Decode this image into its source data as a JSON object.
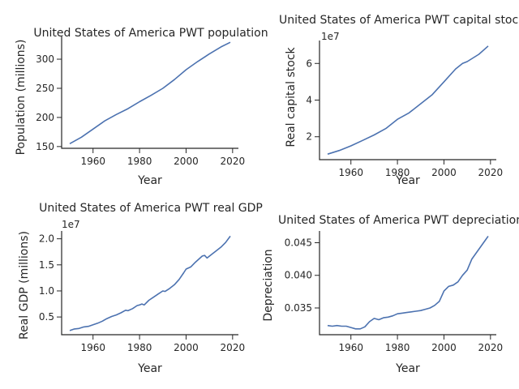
{
  "colors": {
    "line": "#4c72b0",
    "axis": "#262626",
    "background": "#ffffff"
  },
  "chart_data": [
    {
      "id": "population",
      "type": "line",
      "title": "United States of America PWT population",
      "xlabel": "Year",
      "ylabel": "Population (millions)",
      "offset_text": "",
      "xlim": [
        1946.5,
        2022.5
      ],
      "ylim": [
        147,
        339
      ],
      "xticks": [
        1960,
        1980,
        2000,
        2020
      ],
      "xtick_labels": [
        "1960",
        "1980",
        "2000",
        "2020"
      ],
      "yticks": [
        150,
        200,
        250,
        300
      ],
      "ytick_labels": [
        "150",
        "200",
        "250",
        "300"
      ],
      "series": [
        {
          "x": [
            1950,
            1955,
            1960,
            1965,
            1970,
            1975,
            1980,
            1985,
            1990,
            1995,
            2000,
            2005,
            2010,
            2015,
            2019
          ],
          "y": [
            155,
            166,
            180,
            194,
            205,
            215,
            227,
            238,
            250,
            265,
            282,
            296,
            309,
            321,
            329
          ]
        }
      ]
    },
    {
      "id": "capital",
      "type": "line",
      "title": "United States of America PWT capital stock",
      "xlabel": "Year",
      "ylabel": "Real capital stock",
      "offset_text": "1e7",
      "xlim": [
        1946.5,
        2022.5
      ],
      "ylim": [
        0.75,
        7.25
      ],
      "xticks": [
        1960,
        1980,
        2000,
        2020
      ],
      "xtick_labels": [
        "1960",
        "1980",
        "2000",
        "2020"
      ],
      "yticks": [
        2,
        4,
        6
      ],
      "ytick_labels": [
        "2",
        "4",
        "6"
      ],
      "series": [
        {
          "x": [
            1950,
            1955,
            1960,
            1965,
            1970,
            1975,
            1980,
            1985,
            1990,
            1995,
            2000,
            2005,
            2008,
            2010,
            2015,
            2019
          ],
          "y": [
            1.05,
            1.25,
            1.5,
            1.8,
            2.1,
            2.45,
            2.95,
            3.3,
            3.8,
            4.3,
            5.0,
            5.7,
            6.0,
            6.1,
            6.5,
            6.95
          ]
        }
      ]
    },
    {
      "id": "gdp",
      "type": "line",
      "title": "United States of America PWT real GDP",
      "xlabel": "Year",
      "ylabel": "Real GDP (millions)",
      "offset_text": "1e7",
      "xlim": [
        1946.5,
        2022.5
      ],
      "ylim": [
        0.16,
        2.15
      ],
      "xticks": [
        1960,
        1980,
        2000,
        2020
      ],
      "xtick_labels": [
        "1960",
        "1980",
        "2000",
        "2020"
      ],
      "yticks": [
        0.5,
        1.0,
        1.5,
        2.0
      ],
      "ytick_labels": [
        "0.5",
        "1.0",
        "1.5",
        "2.0"
      ],
      "series": [
        {
          "x": [
            1950,
            1952,
            1954,
            1956,
            1958,
            1960,
            1962,
            1964,
            1966,
            1968,
            1970,
            1972,
            1974,
            1975,
            1977,
            1979,
            1980,
            1981,
            1982,
            1984,
            1986,
            1988,
            1990,
            1991,
            1993,
            1995,
            1997,
            1999,
            2000,
            2002,
            2004,
            2006,
            2007,
            2008,
            2009,
            2011,
            2013,
            2015,
            2017,
            2019
          ],
          "y": [
            0.24,
            0.27,
            0.28,
            0.31,
            0.32,
            0.35,
            0.38,
            0.42,
            0.47,
            0.51,
            0.54,
            0.58,
            0.63,
            0.62,
            0.66,
            0.72,
            0.73,
            0.75,
            0.73,
            0.82,
            0.88,
            0.94,
            1.0,
            0.99,
            1.05,
            1.12,
            1.22,
            1.35,
            1.42,
            1.46,
            1.55,
            1.63,
            1.67,
            1.68,
            1.63,
            1.7,
            1.77,
            1.84,
            1.93,
            2.05
          ]
        }
      ]
    },
    {
      "id": "depreciation",
      "type": "line",
      "title": "United States of America PWT depreciation",
      "xlabel": "Year",
      "ylabel": "Depreciation",
      "offset_text": "",
      "xlim": [
        1946.5,
        2022.5
      ],
      "ylim": [
        0.0309,
        0.0468
      ],
      "xticks": [
        1960,
        1980,
        2000,
        2020
      ],
      "xtick_labels": [
        "1960",
        "1980",
        "2000",
        "2020"
      ],
      "yticks": [
        0.035,
        0.04,
        0.045
      ],
      "ytick_labels": [
        "0.035",
        "0.040",
        "0.045"
      ],
      "series": [
        {
          "x": [
            1950,
            1952,
            1954,
            1956,
            1958,
            1960,
            1962,
            1964,
            1966,
            1968,
            1970,
            1972,
            1974,
            1976,
            1978,
            1980,
            1982,
            1984,
            1986,
            1988,
            1990,
            1992,
            1994,
            1996,
            1998,
            2000,
            2002,
            2004,
            2006,
            2008,
            2010,
            2012,
            2014,
            2016,
            2018,
            2019
          ],
          "y": [
            0.0323,
            0.0322,
            0.0323,
            0.0322,
            0.0322,
            0.032,
            0.0318,
            0.0318,
            0.0321,
            0.0329,
            0.0334,
            0.0332,
            0.0335,
            0.0336,
            0.0338,
            0.0341,
            0.0342,
            0.0343,
            0.0344,
            0.0345,
            0.0346,
            0.0348,
            0.035,
            0.0354,
            0.036,
            0.0376,
            0.0383,
            0.0385,
            0.039,
            0.04,
            0.0408,
            0.0425,
            0.0435,
            0.0445,
            0.0455,
            0.046
          ]
        }
      ]
    }
  ]
}
